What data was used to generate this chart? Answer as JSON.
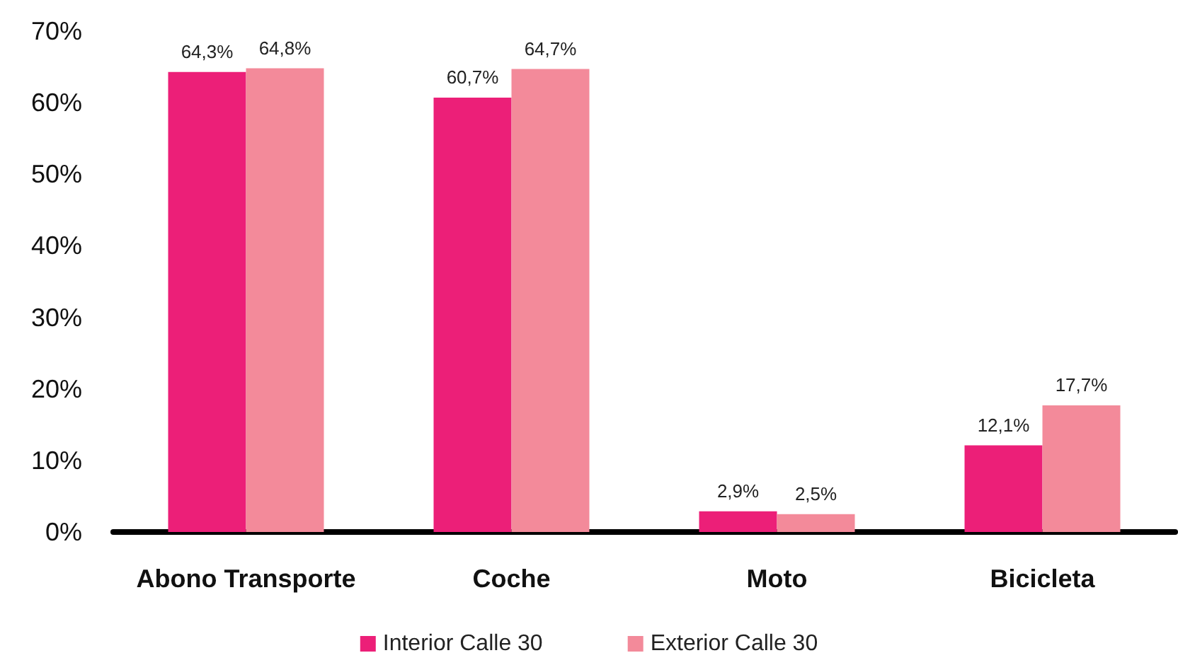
{
  "chart_data": {
    "type": "bar",
    "categories": [
      "Abono Transporte",
      "Coche",
      "Moto",
      "Bicicleta"
    ],
    "series": [
      {
        "name": "Interior Calle 30",
        "color": "#ec1f78",
        "values": [
          64.3,
          60.7,
          2.9,
          12.1
        ],
        "value_labels": [
          "64,3%",
          "60,7%",
          "2,9%",
          "12,1%"
        ]
      },
      {
        "name": "Exterior Calle 30",
        "color": "#f38a9a",
        "values": [
          64.8,
          64.7,
          2.5,
          17.7
        ],
        "value_labels": [
          "64,8%",
          "64,7%",
          "2,5%",
          "17,7%"
        ]
      }
    ],
    "ylim": [
      0,
      70
    ],
    "yticks": [
      {
        "value": 0,
        "label": "0%"
      },
      {
        "value": 10,
        "label": "10%"
      },
      {
        "value": 20,
        "label": "20%"
      },
      {
        "value": 30,
        "label": "30%"
      },
      {
        "value": 40,
        "label": "40%"
      },
      {
        "value": 50,
        "label": "50%"
      },
      {
        "value": 60,
        "label": "60%"
      },
      {
        "value": 70,
        "label": "70%"
      }
    ],
    "grid": false,
    "legend": "bottom"
  }
}
